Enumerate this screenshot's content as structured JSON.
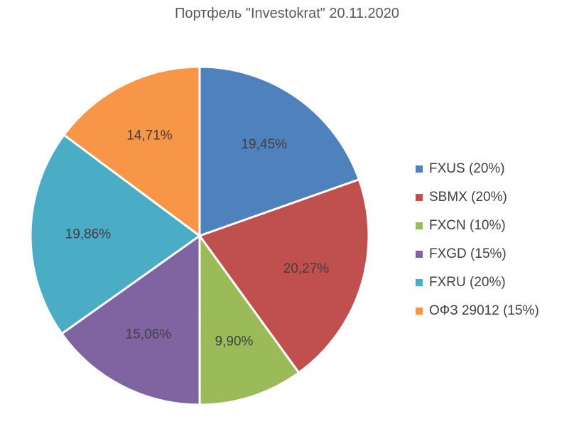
{
  "chart_data": {
    "type": "pie",
    "title": "Портфель \"Investokrat\" 20.11.2020",
    "slices": [
      {
        "label": "FXUS (20%)",
        "value": 19.45,
        "display": "19,45%",
        "color": "#4F81BD"
      },
      {
        "label": "SBMX (20%)",
        "value": 20.27,
        "display": "20,27%",
        "color": "#C0504D"
      },
      {
        "label": "FXCN (10%)",
        "value": 9.9,
        "display": "9,90%",
        "color": "#9BBB59"
      },
      {
        "label": "FXGD (15%)",
        "value": 15.06,
        "display": "15,06%",
        "color": "#8064A2"
      },
      {
        "label": "FXRU (20%)",
        "value": 19.86,
        "display": "19,86%",
        "color": "#4BACC6"
      },
      {
        "label": "ОФЗ 29012 (15%)",
        "value": 14.71,
        "display": "14,71%",
        "color": "#F79646"
      }
    ],
    "legend_position": "right",
    "start_angle_deg": 0,
    "direction": "clockwise"
  }
}
